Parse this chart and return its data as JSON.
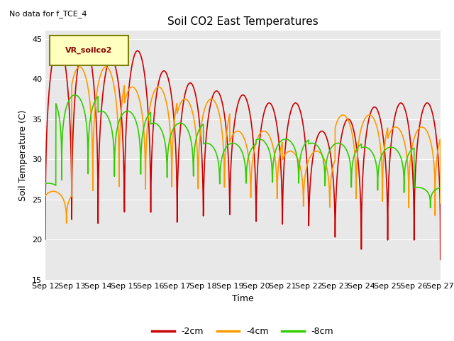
{
  "title": "Soil CO2 East Temperatures",
  "subtitle": "No data for f_TCE_4",
  "xlabel": "Time",
  "ylabel": "Soil Temperature (C)",
  "ylim": [
    15,
    46
  ],
  "yticks": [
    15,
    20,
    25,
    30,
    35,
    40,
    45
  ],
  "legend_label": "VR_soilco2",
  "series_labels": [
    "-2cm",
    "-4cm",
    "-8cm"
  ],
  "series_colors": [
    "#cc0000",
    "#ff9900",
    "#33cc00"
  ],
  "x_tick_labels": [
    "Sep 12",
    "Sep 13",
    "Sep 14",
    "Sep 15",
    "Sep 16",
    "Sep 17",
    "Sep 18",
    "Sep 19",
    "Sep 20",
    "Sep 21",
    "Sep 22",
    "Sep 23",
    "Sep 24",
    "Sep 25",
    "Sep 26",
    "Sep 27"
  ],
  "background_color": "#e8e8e8"
}
